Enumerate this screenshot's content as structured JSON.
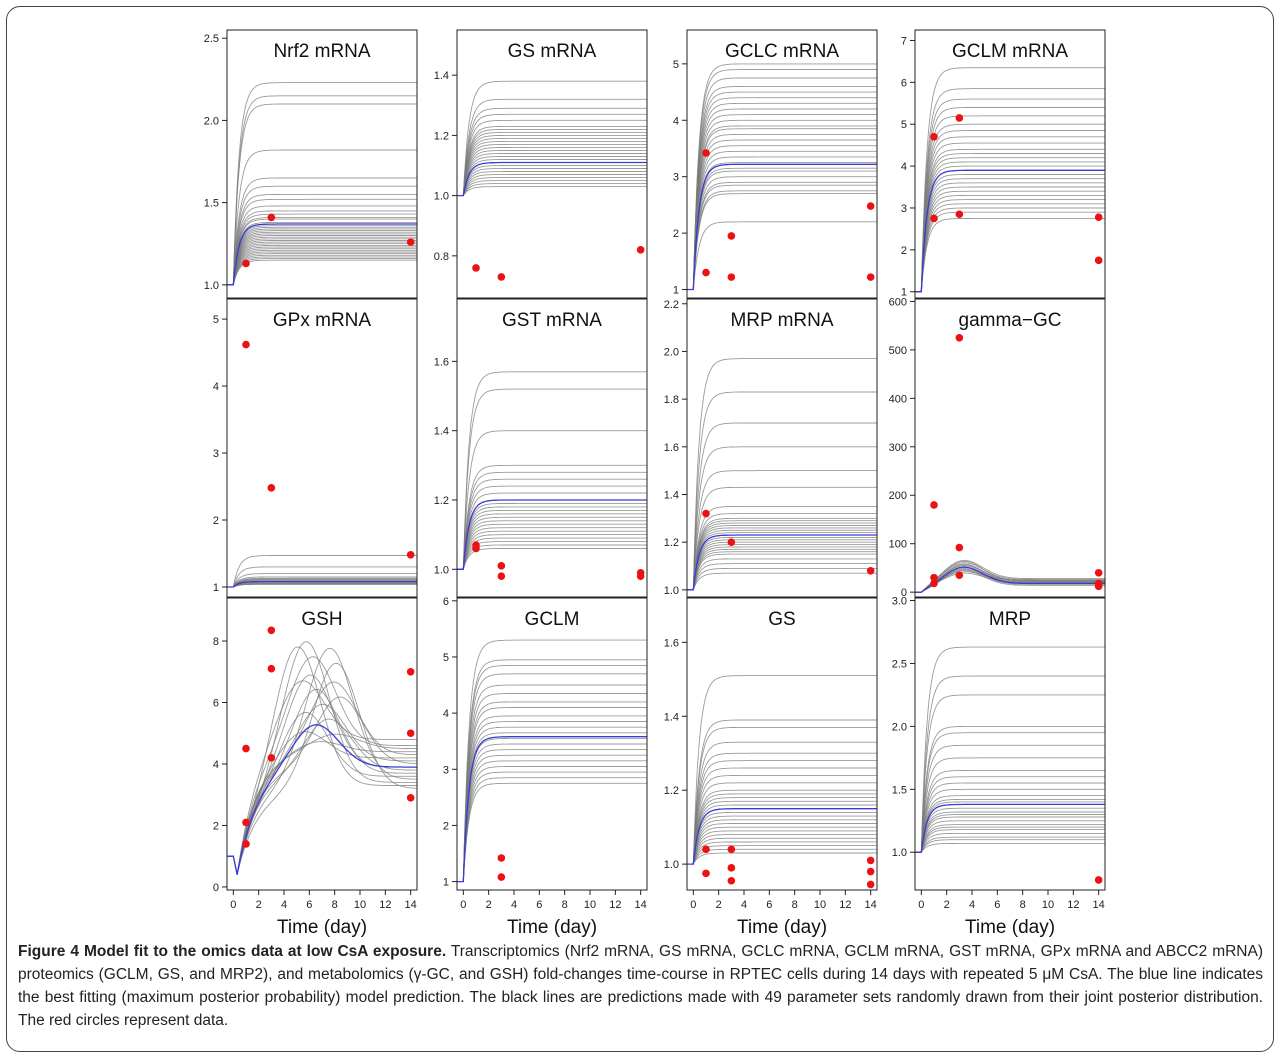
{
  "caption": {
    "label": "Figure 4 Model fit to the omics data at low CsA exposure.",
    "text": "Transcriptomics (Nrf2 mRNA, GS mRNA, GCLC mRNA, GCLM mRNA, GST mRNA, GPx mRNA and ABCC2 mRNA) proteomics (GCLM, GS, and MRP2), and metabolomics (γ-GC, and GSH) fold-changes time-course in RPTEC cells during 14 days with repeated 5 μM CsA. The blue line indicates the best fitting (maximum posterior probability) model prediction. The black lines are predictions made with 49 parameter sets randomly drawn from their joint posterior distribution. The red circles represent data."
  },
  "colors": {
    "posterior_lines": "#7a7a7a",
    "best_fit": "#3b3bd6",
    "data_points": "#ee1111",
    "axis": "#222222"
  },
  "x_axis": {
    "label": "Time (day)",
    "ticks": [
      0,
      2,
      4,
      6,
      8,
      10,
      12,
      14
    ],
    "range": [
      -0.5,
      14.5
    ]
  },
  "chart_data": [
    {
      "type": "line",
      "title": "Nrf2 mRNA",
      "ylim": [
        0.92,
        2.55
      ],
      "yticks": [
        "1.0",
        "1.5",
        "2.0",
        "2.5"
      ],
      "profile": "sat",
      "start": 1.0,
      "best_fit_plateau": 1.37,
      "posterior_plateaus": [
        2.23,
        2.15,
        2.1,
        1.82,
        1.65,
        1.6,
        1.55,
        1.52,
        1.48,
        1.45,
        1.43,
        1.41,
        1.4,
        1.38,
        1.36,
        1.35,
        1.34,
        1.33,
        1.32,
        1.31,
        1.3,
        1.29,
        1.28,
        1.27,
        1.26,
        1.25,
        1.24,
        1.23,
        1.22,
        1.21,
        1.2,
        1.19,
        1.18,
        1.17,
        1.16,
        1.15
      ],
      "data": [
        [
          1,
          1.13
        ],
        [
          3,
          1.41
        ],
        [
          14,
          1.26
        ]
      ]
    },
    {
      "type": "line",
      "title": "GS mRNA",
      "ylim": [
        0.66,
        1.55
      ],
      "yticks": [
        "0.8",
        "1.0",
        "1.2",
        "1.4"
      ],
      "profile": "sat",
      "start": 1.0,
      "best_fit_plateau": 1.11,
      "posterior_plateaus": [
        1.38,
        1.32,
        1.29,
        1.27,
        1.25,
        1.23,
        1.22,
        1.21,
        1.2,
        1.19,
        1.18,
        1.17,
        1.16,
        1.15,
        1.14,
        1.13,
        1.12,
        1.11,
        1.1,
        1.09,
        1.08,
        1.07,
        1.06,
        1.05,
        1.04,
        1.03
      ],
      "data": [
        [
          1,
          0.76
        ],
        [
          3,
          0.73
        ],
        [
          14,
          0.82
        ]
      ]
    },
    {
      "type": "line",
      "title": "GCLC mRNA",
      "ylim": [
        0.85,
        5.6
      ],
      "yticks": [
        "1",
        "2",
        "3",
        "4",
        "5"
      ],
      "profile": "sat",
      "start": 1.0,
      "best_fit_plateau": 3.22,
      "posterior_plateaus": [
        5.0,
        4.9,
        4.75,
        4.6,
        4.5,
        4.4,
        4.3,
        4.2,
        4.1,
        4.0,
        3.9,
        3.85,
        3.75,
        3.65,
        3.55,
        3.45,
        3.35,
        3.25,
        3.15,
        3.1,
        3.0,
        2.9,
        2.85,
        2.75,
        2.7,
        2.2
      ],
      "data": [
        [
          1,
          3.42
        ],
        [
          1,
          1.3
        ],
        [
          3,
          1.95
        ],
        [
          3,
          1.22
        ],
        [
          14,
          2.48
        ],
        [
          14,
          1.22
        ]
      ]
    },
    {
      "type": "line",
      "title": "GCLM mRNA",
      "ylim": [
        0.85,
        7.25
      ],
      "yticks": [
        "1",
        "2",
        "3",
        "4",
        "5",
        "6",
        "7"
      ],
      "profile": "sat",
      "start": 1.0,
      "best_fit_plateau": 3.9,
      "posterior_plateaus": [
        6.35,
        5.85,
        5.6,
        5.4,
        5.2,
        5.0,
        4.85,
        4.7,
        4.55,
        4.4,
        4.3,
        4.2,
        4.1,
        4.0,
        3.9,
        3.8,
        3.7,
        3.6,
        3.5,
        3.4,
        3.3,
        3.2,
        3.1,
        3.0,
        2.9,
        2.75
      ],
      "data": [
        [
          1,
          4.7
        ],
        [
          1,
          2.75
        ],
        [
          3,
          5.15
        ],
        [
          3,
          2.85
        ],
        [
          14,
          2.78
        ],
        [
          14,
          1.75
        ]
      ]
    },
    {
      "type": "line",
      "title": "GPx mRNA",
      "ylim": [
        0.85,
        5.3
      ],
      "yticks": [
        "1",
        "2",
        "3",
        "4",
        "5"
      ],
      "profile": "sat",
      "start": 1.0,
      "best_fit_plateau": 1.08,
      "posterior_plateaus": [
        1.47,
        1.3,
        1.2,
        1.15,
        1.13,
        1.12,
        1.11,
        1.1,
        1.09,
        1.08,
        1.07,
        1.06,
        1.05,
        1.05,
        1.04,
        1.04
      ],
      "data": [
        [
          1,
          4.62
        ],
        [
          3,
          2.48
        ],
        [
          14,
          1.48
        ]
      ]
    },
    {
      "type": "line",
      "title": "GST mRNA",
      "ylim": [
        0.92,
        1.78
      ],
      "yticks": [
        "1.0",
        "1.2",
        "1.4",
        "1.6"
      ],
      "profile": "sat",
      "start": 1.0,
      "best_fit_plateau": 1.2,
      "posterior_plateaus": [
        1.57,
        1.52,
        1.4,
        1.3,
        1.28,
        1.26,
        1.24,
        1.22,
        1.2,
        1.19,
        1.18,
        1.17,
        1.16,
        1.15,
        1.14,
        1.13,
        1.12,
        1.11,
        1.1,
        1.09,
        1.08,
        1.07,
        1.06
      ],
      "data": [
        [
          1,
          1.07
        ],
        [
          1,
          1.06
        ],
        [
          3,
          1.01
        ],
        [
          3,
          0.98
        ],
        [
          14,
          0.99
        ],
        [
          14,
          0.98
        ]
      ]
    },
    {
      "type": "line",
      "title": "MRP mRNA",
      "ylim": [
        0.97,
        2.22
      ],
      "yticks": [
        "1.0",
        "1.2",
        "1.4",
        "1.6",
        "1.8",
        "2.0",
        "2.2"
      ],
      "profile": "sat",
      "start": 1.0,
      "best_fit_plateau": 1.23,
      "posterior_plateaus": [
        1.97,
        1.83,
        1.7,
        1.6,
        1.5,
        1.43,
        1.35,
        1.32,
        1.3,
        1.29,
        1.28,
        1.27,
        1.26,
        1.25,
        1.24,
        1.23,
        1.22,
        1.21,
        1.2,
        1.19,
        1.18,
        1.17,
        1.16,
        1.15,
        1.13,
        1.11,
        1.09,
        1.07
      ],
      "data": [
        [
          1,
          1.32
        ],
        [
          3,
          1.2
        ],
        [
          14,
          1.08
        ]
      ]
    },
    {
      "type": "line",
      "title": "gamma−GC",
      "ylim": [
        -10,
        605
      ],
      "yticks": [
        "0",
        "100",
        "200",
        "300",
        "400",
        "500",
        "600"
      ],
      "profile": "pulse",
      "start": 0,
      "best_fit_plateau": 18,
      "best_fit_peak": 55,
      "posterior_plateaus": [
        28,
        26,
        24,
        22,
        20,
        18,
        16,
        14,
        25,
        21,
        19,
        23
      ],
      "posterior_peaks": [
        70,
        65,
        60,
        58,
        55,
        52,
        50,
        48,
        45,
        42,
        62,
        68
      ],
      "data": [
        [
          1,
          180
        ],
        [
          1,
          30
        ],
        [
          1,
          18
        ],
        [
          3,
          525
        ],
        [
          3,
          92
        ],
        [
          3,
          35
        ],
        [
          14,
          40
        ],
        [
          14,
          18
        ],
        [
          14,
          12
        ]
      ]
    },
    {
      "type": "line",
      "title": "GSH",
      "ylim": [
        -0.1,
        9.4
      ],
      "yticks": [
        "0",
        "2",
        "4",
        "6",
        "8"
      ],
      "profile": "gsh",
      "start": 1.0,
      "best_fit_plateau": 3.9,
      "best_fit_peak": 5.35,
      "posterior_plateaus": [
        3.2,
        3.4,
        3.5,
        3.7,
        3.8,
        4.0,
        4.2,
        4.4,
        4.6,
        4.8,
        3.6,
        4.3,
        3.3,
        3.9,
        4.1,
        4.5
      ],
      "posterior_peaks": [
        7.3,
        8.1,
        7.8,
        6.5,
        5.5,
        6.2,
        5.2,
        4.8,
        7.6,
        6.9,
        5.8,
        6.7,
        8.0,
        7.0,
        6.0,
        5.0
      ],
      "data": [
        [
          1,
          4.5
        ],
        [
          1,
          2.1
        ],
        [
          1,
          1.4
        ],
        [
          3,
          8.35
        ],
        [
          3,
          7.1
        ],
        [
          3,
          4.2
        ],
        [
          14,
          7.0
        ],
        [
          14,
          5.0
        ],
        [
          14,
          2.9
        ]
      ]
    },
    {
      "type": "line",
      "title": "GCLM",
      "ylim": [
        0.85,
        6.05
      ],
      "yticks": [
        "1",
        "2",
        "3",
        "4",
        "5",
        "6"
      ],
      "profile": "sat",
      "start": 1.0,
      "best_fit_plateau": 3.58,
      "posterior_plateaus": [
        5.3,
        4.95,
        4.85,
        4.7,
        4.5,
        4.35,
        4.2,
        4.1,
        3.95,
        3.85,
        3.75,
        3.65,
        3.55,
        3.45,
        3.35,
        3.25,
        3.15,
        3.05,
        2.95,
        2.85,
        2.75
      ],
      "data": [
        [
          3,
          1.42
        ],
        [
          3,
          1.08
        ]
      ]
    },
    {
      "type": "line",
      "title": "GS",
      "ylim": [
        0.93,
        1.72
      ],
      "yticks": [
        "1.0",
        "1.2",
        "1.4",
        "1.6"
      ],
      "profile": "sat",
      "start": 1.0,
      "best_fit_plateau": 1.15,
      "posterior_plateaus": [
        1.51,
        1.39,
        1.37,
        1.33,
        1.3,
        1.28,
        1.26,
        1.24,
        1.22,
        1.2,
        1.19,
        1.18,
        1.17,
        1.16,
        1.15,
        1.14,
        1.13,
        1.12,
        1.11,
        1.1,
        1.09,
        1.08,
        1.07,
        1.06,
        1.05,
        1.04,
        1.03
      ],
      "data": [
        [
          1,
          1.04
        ],
        [
          1,
          0.975
        ],
        [
          3,
          1.04
        ],
        [
          3,
          0.99
        ],
        [
          3,
          0.955
        ],
        [
          14,
          1.01
        ],
        [
          14,
          0.98
        ],
        [
          14,
          0.945
        ]
      ]
    },
    {
      "type": "line",
      "title": "MRP",
      "ylim": [
        0.7,
        3.02
      ],
      "yticks": [
        "1.0",
        "1.5",
        "2.0",
        "2.5",
        "3.0"
      ],
      "profile": "sat",
      "start": 1.0,
      "best_fit_plateau": 1.38,
      "posterior_plateaus": [
        2.63,
        2.4,
        2.25,
        2.0,
        1.95,
        1.85,
        1.75,
        1.65,
        1.6,
        1.55,
        1.5,
        1.45,
        1.42,
        1.4,
        1.38,
        1.35,
        1.32,
        1.3,
        1.28,
        1.25,
        1.22,
        1.2,
        1.18,
        1.15,
        1.12,
        1.1,
        1.07
      ],
      "data": [
        [
          14,
          0.78
        ]
      ]
    }
  ]
}
